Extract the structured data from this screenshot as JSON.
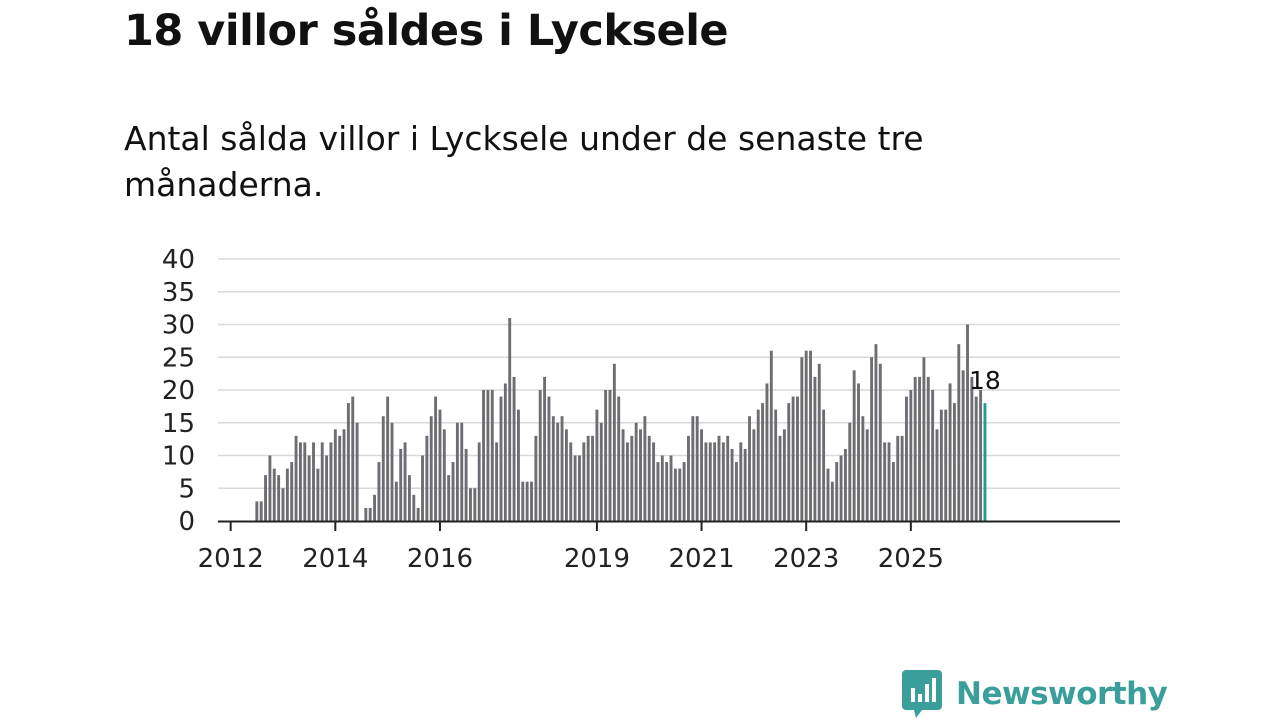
{
  "title": "18 villor såldes i Lycksele",
  "subtitle": "Antal sålda villor i Lycksele under de senaste tre månaderna.",
  "brand": {
    "name": "Newsworthy",
    "color": "#3a9e9a"
  },
  "colors": {
    "bar": "#6e6d73",
    "highlight": "#1e9c96",
    "grid": "#d9d9d9",
    "axis": "#222222",
    "text": "#222222"
  },
  "chart_data": {
    "type": "bar",
    "title": "18 villor såldes i Lycksele",
    "xlabel": "",
    "ylabel": "",
    "ylim": [
      0,
      40
    ],
    "yticks": [
      0,
      5,
      10,
      15,
      20,
      25,
      30,
      35,
      40
    ],
    "grid": true,
    "start": "2011-11",
    "x_tick_labels": [
      {
        "label": "2012",
        "year": 2012
      },
      {
        "label": "2014",
        "year": 2014
      },
      {
        "label": "2016",
        "year": 2016
      },
      {
        "label": "2019",
        "year": 2019
      },
      {
        "label": "2021",
        "year": 2021
      },
      {
        "label": "2023",
        "year": 2023
      },
      {
        "label": "2025",
        "year": 2025
      }
    ],
    "values": [
      0,
      0,
      0,
      0,
      0,
      0,
      0,
      0,
      3,
      3,
      7,
      10,
      8,
      7,
      5,
      8,
      9,
      13,
      12,
      12,
      10,
      12,
      8,
      12,
      10,
      12,
      14,
      13,
      14,
      18,
      19,
      15,
      0,
      2,
      2,
      4,
      9,
      16,
      19,
      15,
      6,
      11,
      12,
      7,
      4,
      2,
      10,
      13,
      16,
      19,
      17,
      14,
      7,
      9,
      15,
      15,
      11,
      5,
      5,
      12,
      20,
      20,
      20,
      12,
      19,
      21,
      31,
      22,
      17,
      6,
      6,
      6,
      13,
      20,
      22,
      19,
      16,
      15,
      16,
      14,
      12,
      10,
      10,
      12,
      13,
      13,
      17,
      15,
      20,
      20,
      24,
      19,
      14,
      12,
      13,
      15,
      14,
      16,
      13,
      12,
      9,
      10,
      9,
      10,
      8,
      8,
      9,
      13,
      16,
      16,
      14,
      12,
      12,
      12,
      13,
      12,
      13,
      11,
      9,
      12,
      11,
      16,
      14,
      17,
      18,
      21,
      26,
      17,
      13,
      14,
      18,
      19,
      19,
      25,
      26,
      26,
      22,
      24,
      17,
      8,
      6,
      9,
      10,
      11,
      15,
      23,
      21,
      16,
      14,
      25,
      27,
      24,
      12,
      12,
      9,
      13,
      13,
      19,
      20,
      22,
      22,
      25,
      22,
      20,
      14,
      17,
      17,
      21,
      18,
      27,
      23,
      30,
      22,
      19,
      20,
      18
    ],
    "highlight_last": true,
    "annotation": {
      "label": "18",
      "target": "last"
    }
  }
}
